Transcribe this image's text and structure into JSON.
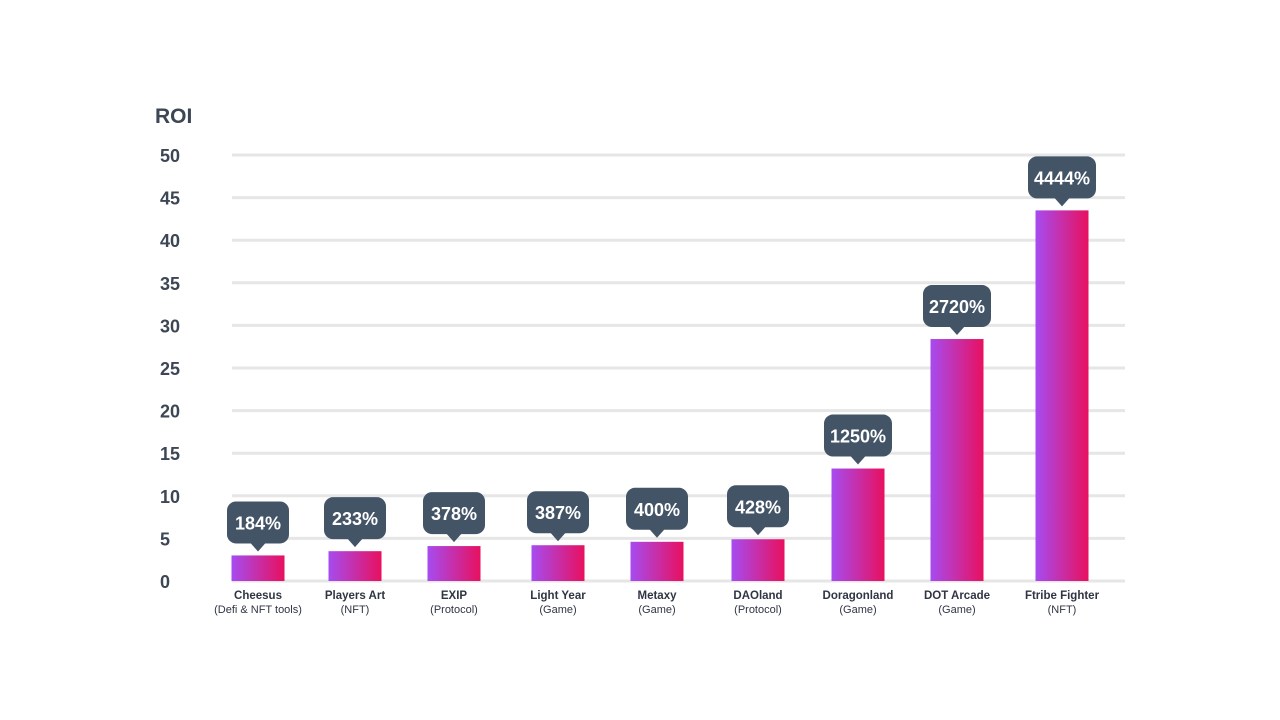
{
  "chart_data": {
    "type": "bar",
    "ylabel": "ROI",
    "ylim": [
      0,
      50
    ],
    "yticks": [
      0,
      5,
      10,
      15,
      20,
      25,
      30,
      35,
      40,
      45,
      50
    ],
    "grid": true,
    "categories": [
      {
        "name": "Cheesus",
        "sub": "(Defi & NFT tools)",
        "value": 3,
        "label": "184%"
      },
      {
        "name": "Players Art",
        "sub": "(NFT)",
        "value": 3.5,
        "label": "233%"
      },
      {
        "name": "EXIP",
        "sub": "(Protocol)",
        "value": 4.1,
        "label": "378%"
      },
      {
        "name": "Light Year",
        "sub": "(Game)",
        "value": 4.2,
        "label": "387%"
      },
      {
        "name": "Metaxy",
        "sub": "(Game)",
        "value": 4.6,
        "label": "400%"
      },
      {
        "name": "DAOland",
        "sub": "(Protocol)",
        "value": 4.9,
        "label": "428%"
      },
      {
        "name": "Doragonland",
        "sub": "(Game)",
        "value": 13.2,
        "label": "1250%"
      },
      {
        "name": "DOT Arcade",
        "sub": "(Game)",
        "value": 28.4,
        "label": "2720%"
      },
      {
        "name": "Ftribe Fighter",
        "sub": "(NFT)",
        "value": 43.5,
        "label": "4444%"
      }
    ],
    "colors": {
      "bar_start": "#a64cf0",
      "bar_end": "#e8105f",
      "callout": "#445467",
      "grid": "#e6e6e6",
      "text": "#3d4654"
    }
  }
}
